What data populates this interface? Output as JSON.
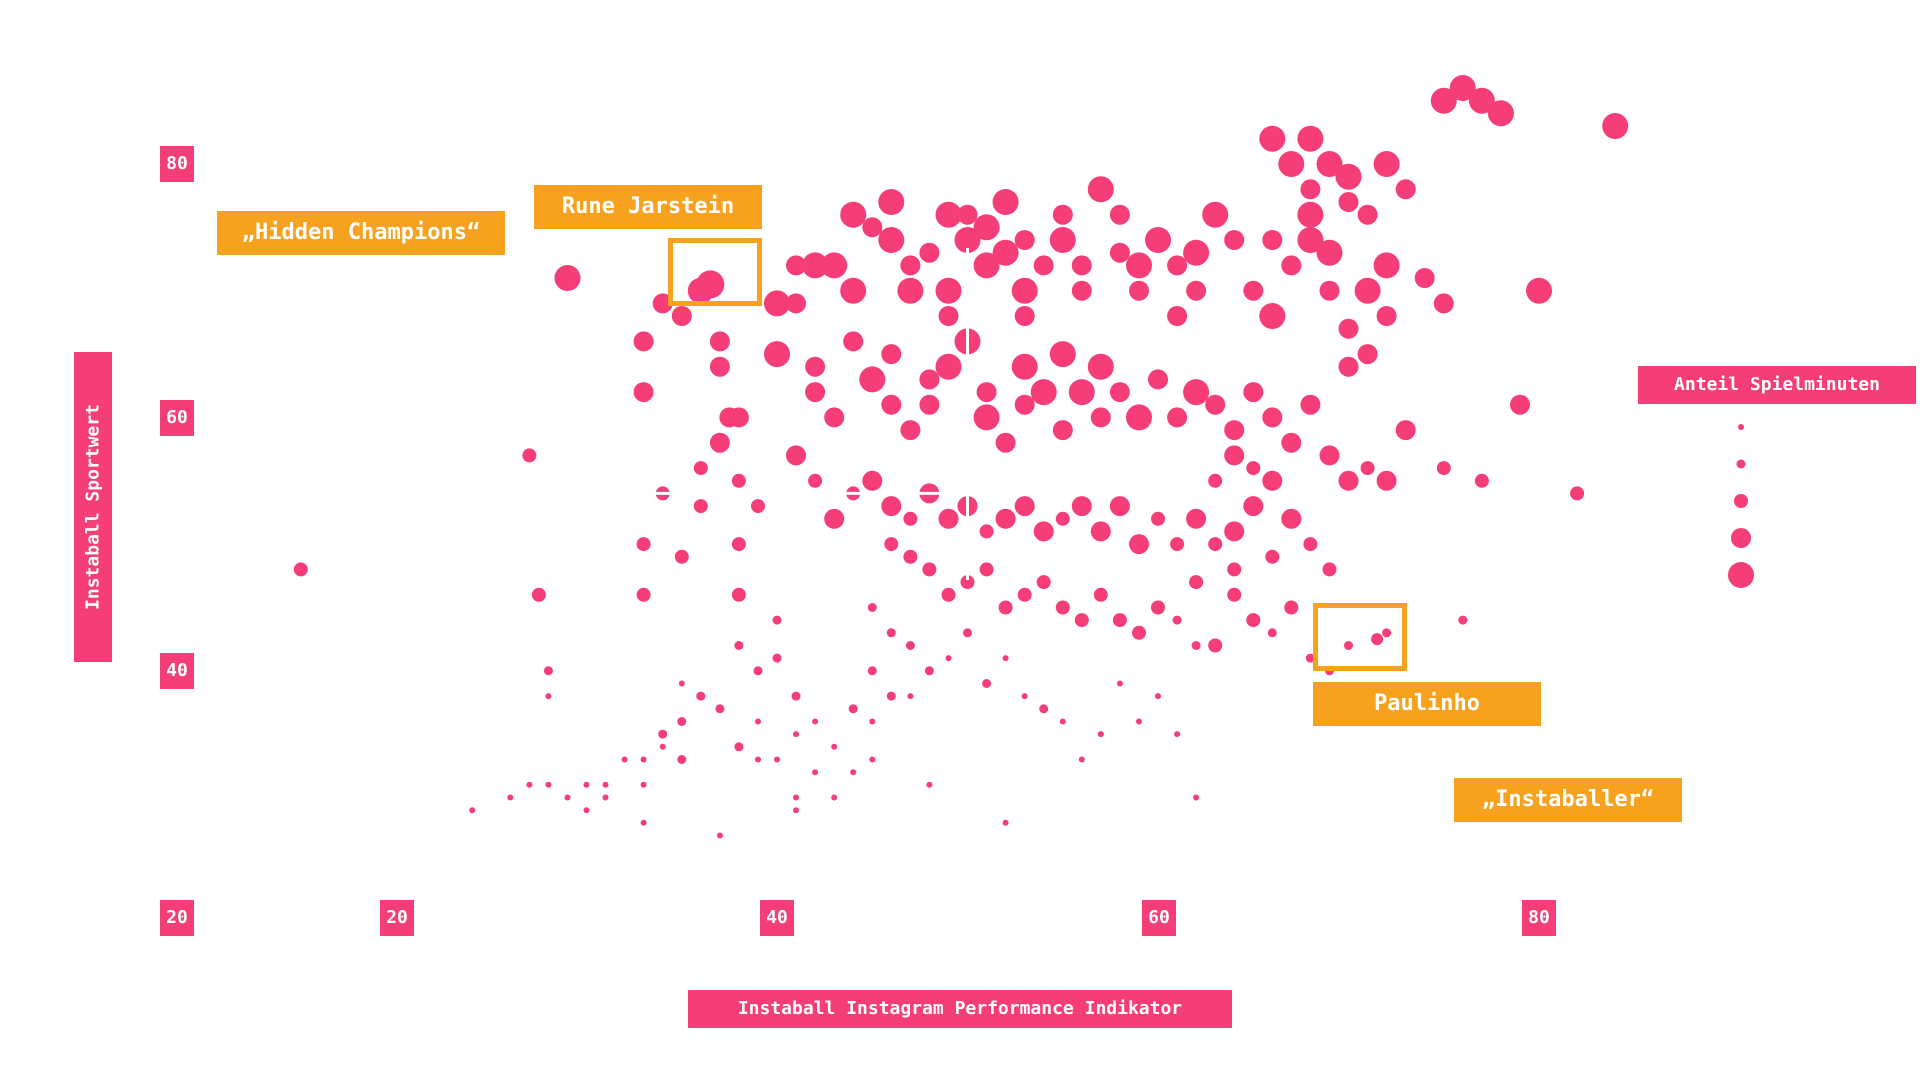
{
  "chart_data": {
    "type": "scatter",
    "title": "",
    "xlabel": "Instaball Instagram Performance Indikator",
    "ylabel": "Instaball Sportwert",
    "xlim": [
      13,
      95
    ],
    "ylim": [
      16,
      89
    ],
    "x_ticks": [
      "20",
      "40",
      "60",
      "80"
    ],
    "y_ticks": [
      "20",
      "40",
      "60",
      "80"
    ],
    "size_legend_title": "Anteil Spielminuten",
    "quadrant_center": [
      50,
      54
    ],
    "quadrant_labels": [
      "„Hidden Champions“",
      "„Instaballer“"
    ],
    "highlights": [
      {
        "name": "Rune Jarstein",
        "x": 36.5,
        "y": 70.5
      },
      {
        "name": "Paulinho",
        "x": 71.5,
        "y": 42.5
      }
    ],
    "marker_color": "#f53d78",
    "highlight_color": "#f7a21f",
    "points": [
      [
        15,
        48,
        3
      ],
      [
        27,
        57,
        3
      ],
      [
        27.5,
        46,
        3
      ],
      [
        28,
        40,
        2
      ],
      [
        28,
        38,
        1
      ],
      [
        29,
        71,
        5
      ],
      [
        33,
        66,
        4
      ],
      [
        33,
        62,
        4
      ],
      [
        34,
        54,
        3
      ],
      [
        33,
        50,
        3
      ],
      [
        33,
        46,
        3
      ],
      [
        34,
        69,
        4
      ],
      [
        35,
        68,
        4
      ],
      [
        36,
        70,
        5
      ],
      [
        37,
        66,
        4
      ],
      [
        37,
        64,
        4
      ],
      [
        37.5,
        60,
        4
      ],
      [
        36,
        56,
        3
      ],
      [
        36,
        53,
        3
      ],
      [
        35,
        49,
        3
      ],
      [
        38,
        60,
        4
      ],
      [
        37,
        58,
        4
      ],
      [
        38,
        55,
        3
      ],
      [
        39,
        53,
        3
      ],
      [
        38,
        50,
        3
      ],
      [
        38,
        46,
        3
      ],
      [
        38,
        42,
        2
      ],
      [
        39,
        40,
        2
      ],
      [
        40,
        44,
        2
      ],
      [
        40,
        41,
        2
      ],
      [
        41,
        38,
        2
      ],
      [
        39,
        36,
        1
      ],
      [
        37,
        37,
        2
      ],
      [
        36,
        38,
        2
      ],
      [
        35,
        39,
        1
      ],
      [
        35,
        36,
        2
      ],
      [
        34,
        35,
        2
      ],
      [
        34,
        34,
        1
      ],
      [
        35,
        33,
        2
      ],
      [
        33,
        33,
        1
      ],
      [
        32,
        33,
        1
      ],
      [
        33,
        31,
        1
      ],
      [
        31,
        31,
        1
      ],
      [
        30,
        31,
        1
      ],
      [
        31,
        30,
        1
      ],
      [
        30,
        29,
        1
      ],
      [
        29,
        30,
        1
      ],
      [
        28,
        31,
        1
      ],
      [
        27,
        31,
        1
      ],
      [
        26,
        30,
        1
      ],
      [
        24,
        29,
        1
      ],
      [
        33,
        28,
        1
      ],
      [
        37,
        27,
        1
      ],
      [
        38,
        34,
        2
      ],
      [
        39,
        33,
        1
      ],
      [
        40,
        33,
        1
      ],
      [
        41,
        35,
        1
      ],
      [
        42,
        36,
        1
      ],
      [
        42,
        32,
        1
      ],
      [
        43,
        34,
        1
      ],
      [
        44,
        32,
        1
      ],
      [
        44,
        37,
        2
      ],
      [
        45,
        40,
        2
      ],
      [
        45,
        36,
        1
      ],
      [
        45,
        33,
        1
      ],
      [
        46,
        38,
        2
      ],
      [
        47,
        38,
        1
      ],
      [
        41,
        30,
        1
      ],
      [
        41,
        29,
        1
      ],
      [
        43,
        30,
        1
      ],
      [
        48,
        31,
        1
      ],
      [
        40,
        65,
        5
      ],
      [
        40,
        69,
        5
      ],
      [
        41,
        72,
        4
      ],
      [
        41,
        69,
        4
      ],
      [
        42,
        72,
        5
      ],
      [
        43,
        72,
        5
      ],
      [
        44,
        70,
        5
      ],
      [
        44,
        76,
        5
      ],
      [
        45,
        75,
        4
      ],
      [
        46,
        74,
        5
      ],
      [
        46,
        77,
        5
      ],
      [
        47,
        72,
        4
      ],
      [
        47,
        70,
        5
      ],
      [
        48,
        73,
        4
      ],
      [
        49,
        70,
        5
      ],
      [
        49,
        68,
        4
      ],
      [
        49,
        76,
        5
      ],
      [
        50,
        74,
        5
      ],
      [
        50,
        76,
        4
      ],
      [
        51,
        75,
        5
      ],
      [
        51,
        72,
        5
      ],
      [
        52,
        73,
        5
      ],
      [
        52,
        77,
        5
      ],
      [
        53,
        74,
        4
      ],
      [
        53,
        70,
        5
      ],
      [
        53,
        68,
        4
      ],
      [
        54,
        72,
        4
      ],
      [
        55,
        74,
        5
      ],
      [
        55,
        76,
        4
      ],
      [
        56,
        72,
        4
      ],
      [
        56,
        70,
        4
      ],
      [
        57,
        78,
        5
      ],
      [
        58,
        76,
        4
      ],
      [
        58,
        73,
        4
      ],
      [
        59,
        72,
        5
      ],
      [
        59,
        70,
        4
      ],
      [
        60,
        74,
        5
      ],
      [
        61,
        72,
        4
      ],
      [
        61,
        68,
        4
      ],
      [
        62,
        73,
        5
      ],
      [
        62,
        70,
        4
      ],
      [
        63,
        76,
        5
      ],
      [
        64,
        74,
        4
      ],
      [
        65,
        70,
        4
      ],
      [
        66,
        68,
        5
      ],
      [
        66,
        74,
        4
      ],
      [
        67,
        72,
        4
      ],
      [
        68,
        76,
        5
      ],
      [
        68,
        74,
        5
      ],
      [
        69,
        73,
        5
      ],
      [
        69,
        70,
        4
      ],
      [
        70,
        67,
        4
      ],
      [
        70,
        64,
        4
      ],
      [
        71,
        65,
        4
      ],
      [
        71,
        70,
        5
      ],
      [
        72,
        72,
        5
      ],
      [
        72,
        68,
        4
      ],
      [
        74,
        71,
        4
      ],
      [
        75,
        69,
        4
      ],
      [
        66,
        82,
        5
      ],
      [
        67,
        80,
        5
      ],
      [
        68,
        82,
        5
      ],
      [
        68,
        78,
        4
      ],
      [
        69,
        80,
        5
      ],
      [
        70,
        79,
        5
      ],
      [
        70,
        77,
        4
      ],
      [
        71,
        76,
        4
      ],
      [
        72,
        80,
        5
      ],
      [
        73,
        78,
        4
      ],
      [
        75,
        85,
        5
      ],
      [
        76,
        86,
        5
      ],
      [
        77,
        85,
        5
      ],
      [
        78,
        84,
        5
      ],
      [
        80,
        70,
        5
      ],
      [
        84,
        83,
        5
      ],
      [
        42,
        64,
        4
      ],
      [
        42,
        62,
        4
      ],
      [
        43,
        60,
        4
      ],
      [
        44,
        66,
        4
      ],
      [
        45,
        63,
        5
      ],
      [
        46,
        65,
        4
      ],
      [
        46,
        61,
        4
      ],
      [
        47,
        59,
        4
      ],
      [
        48,
        61,
        4
      ],
      [
        48,
        63,
        4
      ],
      [
        49,
        64,
        5
      ],
      [
        50,
        66,
        5
      ],
      [
        51,
        62,
        4
      ],
      [
        51,
        60,
        5
      ],
      [
        52,
        58,
        4
      ],
      [
        53,
        61,
        4
      ],
      [
        53,
        64,
        5
      ],
      [
        54,
        62,
        5
      ],
      [
        55,
        59,
        4
      ],
      [
        55,
        65,
        5
      ],
      [
        56,
        62,
        5
      ],
      [
        57,
        60,
        4
      ],
      [
        57,
        64,
        5
      ],
      [
        58,
        62,
        4
      ],
      [
        59,
        60,
        5
      ],
      [
        60,
        63,
        4
      ],
      [
        61,
        60,
        4
      ],
      [
        62,
        62,
        5
      ],
      [
        63,
        61,
        4
      ],
      [
        64,
        59,
        4
      ],
      [
        65,
        62,
        4
      ],
      [
        66,
        60,
        4
      ],
      [
        67,
        58,
        4
      ],
      [
        68,
        61,
        4
      ],
      [
        69,
        57,
        4
      ],
      [
        70,
        55,
        4
      ],
      [
        71,
        56,
        3
      ],
      [
        72,
        55,
        4
      ],
      [
        73,
        59,
        4
      ],
      [
        75,
        56,
        3
      ],
      [
        77,
        55,
        3
      ],
      [
        79,
        61,
        4
      ],
      [
        41,
        57,
        4
      ],
      [
        42,
        55,
        3
      ],
      [
        43,
        52,
        4
      ],
      [
        44,
        54,
        3
      ],
      [
        45,
        55,
        4
      ],
      [
        46,
        53,
        4
      ],
      [
        47,
        52,
        3
      ],
      [
        48,
        54,
        4
      ],
      [
        49,
        52,
        4
      ],
      [
        50,
        53,
        4
      ],
      [
        51,
        51,
        3
      ],
      [
        52,
        52,
        4
      ],
      [
        53,
        53,
        4
      ],
      [
        54,
        51,
        4
      ],
      [
        55,
        52,
        3
      ],
      [
        56,
        53,
        4
      ],
      [
        57,
        51,
        4
      ],
      [
        58,
        53,
        4
      ],
      [
        59,
        50,
        4
      ],
      [
        60,
        52,
        3
      ],
      [
        61,
        50,
        3
      ],
      [
        62,
        52,
        4
      ],
      [
        63,
        50,
        3
      ],
      [
        64,
        51,
        4
      ],
      [
        65,
        53,
        4
      ],
      [
        66,
        49,
        3
      ],
      [
        67,
        52,
        4
      ],
      [
        68,
        50,
        3
      ],
      [
        69,
        48,
        3
      ],
      [
        46,
        50,
        3
      ],
      [
        47,
        49,
        3
      ],
      [
        48,
        48,
        3
      ],
      [
        49,
        46,
        3
      ],
      [
        50,
        47,
        3
      ],
      [
        51,
        48,
        3
      ],
      [
        52,
        45,
        3
      ],
      [
        53,
        46,
        3
      ],
      [
        54,
        47,
        3
      ],
      [
        55,
        45,
        3
      ],
      [
        56,
        44,
        3
      ],
      [
        57,
        46,
        3
      ],
      [
        58,
        44,
        3
      ],
      [
        59,
        43,
        3
      ],
      [
        60,
        45,
        3
      ],
      [
        61,
        44,
        2
      ],
      [
        62,
        47,
        3
      ],
      [
        63,
        42,
        3
      ],
      [
        64,
        46,
        3
      ],
      [
        65,
        44,
        3
      ],
      [
        66,
        43,
        2
      ],
      [
        67,
        45,
        3
      ],
      [
        68,
        41,
        2
      ],
      [
        69,
        40,
        2
      ],
      [
        70,
        42,
        2
      ],
      [
        45,
        45,
        2
      ],
      [
        46,
        43,
        2
      ],
      [
        47,
        42,
        2
      ],
      [
        48,
        40,
        2
      ],
      [
        49,
        41,
        1
      ],
      [
        50,
        43,
        2
      ],
      [
        51,
        39,
        2
      ],
      [
        52,
        41,
        1
      ],
      [
        53,
        38,
        1
      ],
      [
        54,
        37,
        2
      ],
      [
        55,
        36,
        1
      ],
      [
        56,
        33,
        1
      ],
      [
        57,
        35,
        1
      ],
      [
        58,
        39,
        1
      ],
      [
        59,
        36,
        1
      ],
      [
        60,
        38,
        1
      ],
      [
        61,
        35,
        1
      ],
      [
        62,
        30,
        1
      ],
      [
        72,
        43,
        2
      ],
      [
        76,
        44,
        2
      ],
      [
        82,
        54,
        3
      ],
      [
        52,
        28,
        1
      ],
      [
        62,
        42,
        2
      ],
      [
        64,
        48,
        3
      ],
      [
        63,
        55,
        3
      ],
      [
        64,
        57,
        4
      ],
      [
        65,
        56,
        3
      ],
      [
        66,
        55,
        4
      ]
    ],
    "size_legend": [
      1,
      2,
      3,
      4,
      5
    ]
  }
}
